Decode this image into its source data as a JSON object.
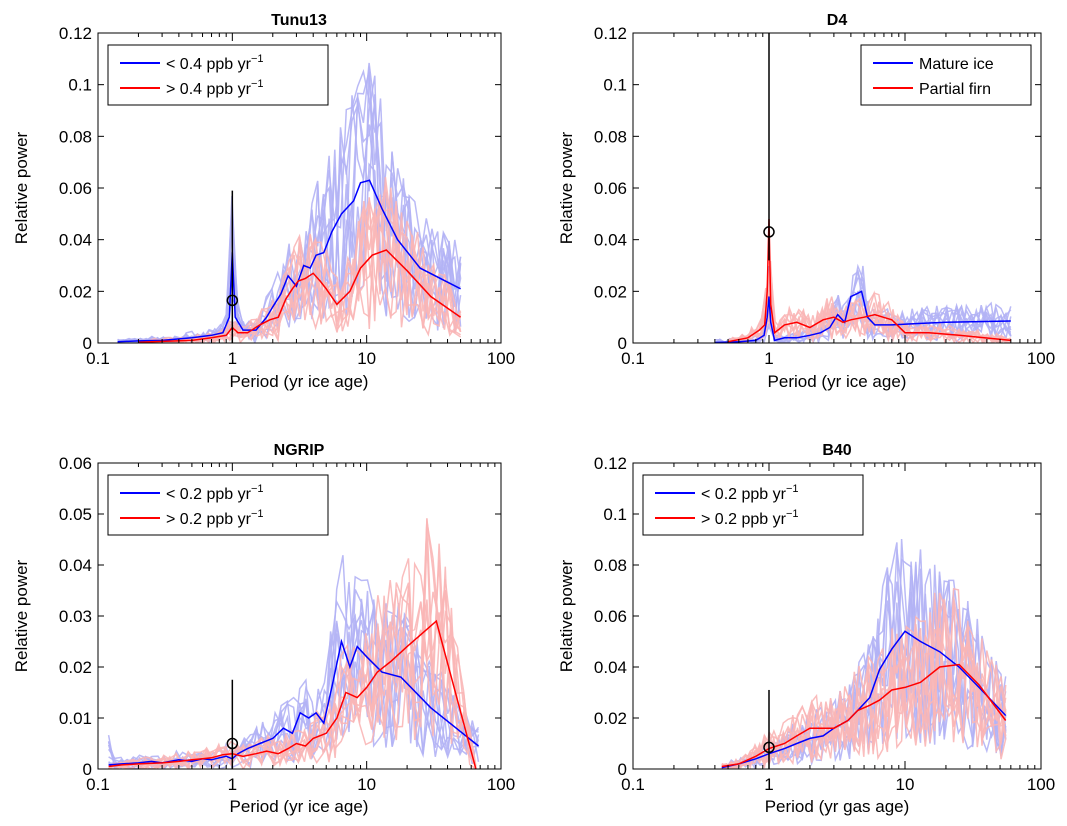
{
  "colors": {
    "blue": "#0000ff",
    "red": "#ff0000",
    "light_blue": "#b3b3f5",
    "light_red": "#f9b6b6",
    "marker": "#000000"
  },
  "chart_data": [
    {
      "id": "tunu13",
      "type": "line",
      "title": "Tunu13",
      "xlabel": "Period (yr ice age)",
      "ylabel": "Relative power",
      "xscale": "log",
      "xlim": [
        0.1,
        100
      ],
      "ylim": [
        0,
        0.12
      ],
      "yticks": [
        "0",
        "0.02",
        "0.04",
        "0.06",
        "0.08",
        "0.1",
        "0.12"
      ],
      "xticks": [
        "0.1",
        "1",
        "10",
        "100"
      ],
      "legend": {
        "position": "top-left",
        "entries": [
          {
            "label": "< 0.4 ppb yr",
            "sup": "−1",
            "color": "#0000ff"
          },
          {
            "label": "> 0.4 ppb yr",
            "sup": "−1",
            "color": "#ff0000"
          }
        ]
      },
      "series": [
        {
          "name": "< 0.4 ppb yr⁻¹",
          "color": "#0000ff",
          "x": [
            0.14,
            0.2,
            0.3,
            0.5,
            0.7,
            0.85,
            0.95,
            1.0,
            1.05,
            1.2,
            1.5,
            1.8,
            2.0,
            2.3,
            2.6,
            3.0,
            3.4,
            3.8,
            4.2,
            4.8,
            5.5,
            6.5,
            8.0,
            9.0,
            10.5,
            13,
            17,
            25,
            50
          ],
          "y": [
            0.0005,
            0.0008,
            0.001,
            0.002,
            0.003,
            0.004,
            0.01,
            0.035,
            0.01,
            0.005,
            0.005,
            0.01,
            0.014,
            0.019,
            0.026,
            0.022,
            0.03,
            0.029,
            0.034,
            0.035,
            0.043,
            0.05,
            0.055,
            0.062,
            0.063,
            0.052,
            0.04,
            0.029,
            0.021
          ]
        },
        {
          "name": "> 0.4 ppb yr⁻¹",
          "color": "#ff0000",
          "x": [
            0.2,
            0.3,
            0.5,
            0.7,
            0.9,
            1.0,
            1.1,
            1.3,
            1.6,
            1.9,
            2.2,
            2.5,
            2.8,
            3.1,
            3.5,
            4.0,
            4.5,
            5.0,
            6.0,
            7.5,
            9.0,
            11.0,
            14,
            20,
            30,
            50
          ],
          "y": [
            0.0003,
            0.0006,
            0.001,
            0.002,
            0.003,
            0.006,
            0.004,
            0.004,
            0.007,
            0.009,
            0.01,
            0.017,
            0.021,
            0.024,
            0.025,
            0.027,
            0.024,
            0.021,
            0.015,
            0.02,
            0.029,
            0.034,
            0.036,
            0.028,
            0.018,
            0.01
          ]
        }
      ],
      "markers": [
        {
          "x": 1.0,
          "y": 0.0165,
          "err_lo": 0.0,
          "err_hi": 0.059
        }
      ]
    },
    {
      "id": "d4",
      "type": "line",
      "title": "D4",
      "xlabel": "Period (yr ice age)",
      "ylabel": "Relative power",
      "xscale": "log",
      "xlim": [
        0.1,
        100
      ],
      "ylim": [
        0,
        0.12
      ],
      "yticks": [
        "0",
        "0.02",
        "0.04",
        "0.06",
        "0.08",
        "0.1",
        "0.12"
      ],
      "xticks": [
        "0.1",
        "1",
        "10",
        "100"
      ],
      "legend": {
        "position": "top-right",
        "entries": [
          {
            "label": "Mature ice",
            "sup": "",
            "color": "#0000ff"
          },
          {
            "label": "Partial firn",
            "sup": "",
            "color": "#ff0000"
          }
        ]
      },
      "series": [
        {
          "name": "Mature ice",
          "color": "#0000ff",
          "x": [
            0.4,
            0.6,
            0.8,
            0.92,
            0.97,
            1.0,
            1.03,
            1.1,
            1.3,
            1.6,
            2.0,
            2.4,
            2.8,
            3.2,
            3.6,
            4.0,
            4.4,
            4.8,
            5.3,
            6.0,
            8.0,
            12,
            20,
            60
          ],
          "y": [
            0.0002,
            0.0005,
            0.001,
            0.003,
            0.01,
            0.018,
            0.008,
            0.001,
            0.002,
            0.002,
            0.003,
            0.004,
            0.006,
            0.011,
            0.008,
            0.018,
            0.019,
            0.02,
            0.01,
            0.007,
            0.007,
            0.0075,
            0.008,
            0.0085
          ]
        },
        {
          "name": "Partial firn",
          "color": "#ff0000",
          "x": [
            0.5,
            0.7,
            0.85,
            0.93,
            0.97,
            1.0,
            1.03,
            1.1,
            1.3,
            1.6,
            2.0,
            2.5,
            3.0,
            3.5,
            4.0,
            5.0,
            6.0,
            8.0,
            10,
            15,
            25,
            60
          ],
          "y": [
            0.0005,
            0.002,
            0.005,
            0.007,
            0.02,
            0.048,
            0.015,
            0.004,
            0.007,
            0.008,
            0.006,
            0.009,
            0.01,
            0.008,
            0.009,
            0.01,
            0.011,
            0.009,
            0.004,
            0.004,
            0.003,
            0.001
          ]
        }
      ],
      "markers": [
        {
          "x": 1.0,
          "y": 0.043,
          "err_lo": 0.032,
          "err_hi": 0.12
        }
      ]
    },
    {
      "id": "ngrip",
      "type": "line",
      "title": "NGRIP",
      "xlabel": "Period (yr ice age)",
      "ylabel": "Relative power",
      "xscale": "log",
      "xlim": [
        0.1,
        100
      ],
      "ylim": [
        0,
        0.06
      ],
      "yticks": [
        "0",
        "0.01",
        "0.02",
        "0.03",
        "0.04",
        "0.05",
        "0.06"
      ],
      "xticks": [
        "0.1",
        "1",
        "10",
        "100"
      ],
      "legend": {
        "position": "top-left",
        "entries": [
          {
            "label": "< 0.2 ppb yr",
            "sup": "−1",
            "color": "#0000ff"
          },
          {
            "label": "> 0.2 ppb yr",
            "sup": "−1",
            "color": "#ff0000"
          }
        ]
      },
      "series": [
        {
          "name": "< 0.2 ppb yr⁻¹",
          "color": "#0000ff",
          "x": [
            0.12,
            0.15,
            0.2,
            0.25,
            0.3,
            0.4,
            0.5,
            0.6,
            0.7,
            0.8,
            0.9,
            1.0,
            1.1,
            1.3,
            1.6,
            2.0,
            2.4,
            2.8,
            3.2,
            3.7,
            4.2,
            4.8,
            5.5,
            6.5,
            7.5,
            8.5,
            10,
            13,
            18,
            30,
            68
          ],
          "y": [
            0.0008,
            0.001,
            0.0012,
            0.0015,
            0.0012,
            0.0018,
            0.0015,
            0.002,
            0.0018,
            0.0022,
            0.0025,
            0.002,
            0.003,
            0.004,
            0.005,
            0.006,
            0.008,
            0.007,
            0.011,
            0.01,
            0.011,
            0.009,
            0.016,
            0.025,
            0.02,
            0.024,
            0.022,
            0.019,
            0.018,
            0.012,
            0.0045
          ]
        },
        {
          "name": "> 0.2 ppb yr⁻¹",
          "color": "#ff0000",
          "x": [
            0.12,
            0.15,
            0.2,
            0.3,
            0.4,
            0.5,
            0.6,
            0.7,
            0.85,
            1.0,
            1.2,
            1.5,
            1.8,
            2.2,
            2.6,
            3.0,
            3.5,
            4.0,
            5.0,
            6.0,
            7.0,
            8.5,
            10,
            12,
            15,
            20,
            33,
            65
          ],
          "y": [
            0.0005,
            0.0008,
            0.001,
            0.0012,
            0.0015,
            0.0018,
            0.002,
            0.0022,
            0.0028,
            0.003,
            0.0025,
            0.003,
            0.0035,
            0.003,
            0.004,
            0.005,
            0.0045,
            0.006,
            0.007,
            0.01,
            0.015,
            0.014,
            0.016,
            0.019,
            0.021,
            0.024,
            0.029,
            0.0
          ]
        }
      ],
      "markers": [
        {
          "x": 1.0,
          "y": 0.005,
          "err_lo": 0.0,
          "err_hi": 0.0175
        }
      ]
    },
    {
      "id": "b40",
      "type": "line",
      "title": "B40",
      "xlabel": "Period (yr gas age)",
      "ylabel": "Relative power",
      "xscale": "log",
      "xlim": [
        0.1,
        100
      ],
      "ylim": [
        0,
        0.12
      ],
      "yticks": [
        "0",
        "0.02",
        "0.04",
        "0.06",
        "0.08",
        "0.1",
        "0.12"
      ],
      "xticks": [
        "0.1",
        "1",
        "10",
        "100"
      ],
      "legend": {
        "position": "top-left",
        "entries": [
          {
            "label": "< 0.2 ppb yr",
            "sup": "−1",
            "color": "#0000ff"
          },
          {
            "label": "> 0.2 ppb yr",
            "sup": "−1",
            "color": "#ff0000"
          }
        ]
      },
      "series": [
        {
          "name": "< 0.2 ppb yr⁻¹",
          "color": "#0000ff",
          "x": [
            0.45,
            0.6,
            0.8,
            1.0,
            1.3,
            1.6,
            2.0,
            2.5,
            3.0,
            3.8,
            4.5,
            5.5,
            6.5,
            8.0,
            10.0,
            13,
            18,
            25,
            35,
            55
          ],
          "y": [
            0.0005,
            0.002,
            0.004,
            0.006,
            0.008,
            0.01,
            0.012,
            0.013,
            0.016,
            0.019,
            0.023,
            0.028,
            0.039,
            0.047,
            0.054,
            0.05,
            0.046,
            0.04,
            0.032,
            0.021
          ]
        },
        {
          "name": "> 0.2 ppb yr⁻¹",
          "color": "#ff0000",
          "x": [
            0.45,
            0.6,
            0.8,
            1.0,
            1.3,
            1.6,
            2.0,
            2.5,
            3.0,
            3.8,
            4.5,
            5.5,
            6.5,
            8.0,
            10,
            13,
            18,
            25,
            35,
            55
          ],
          "y": [
            0.001,
            0.002,
            0.005,
            0.008,
            0.01,
            0.013,
            0.016,
            0.016,
            0.016,
            0.019,
            0.023,
            0.025,
            0.027,
            0.031,
            0.032,
            0.034,
            0.04,
            0.041,
            0.033,
            0.019
          ]
        }
      ],
      "markers": [
        {
          "x": 1.0,
          "y": 0.0085,
          "err_lo": 0.0,
          "err_hi": 0.031
        }
      ]
    }
  ]
}
